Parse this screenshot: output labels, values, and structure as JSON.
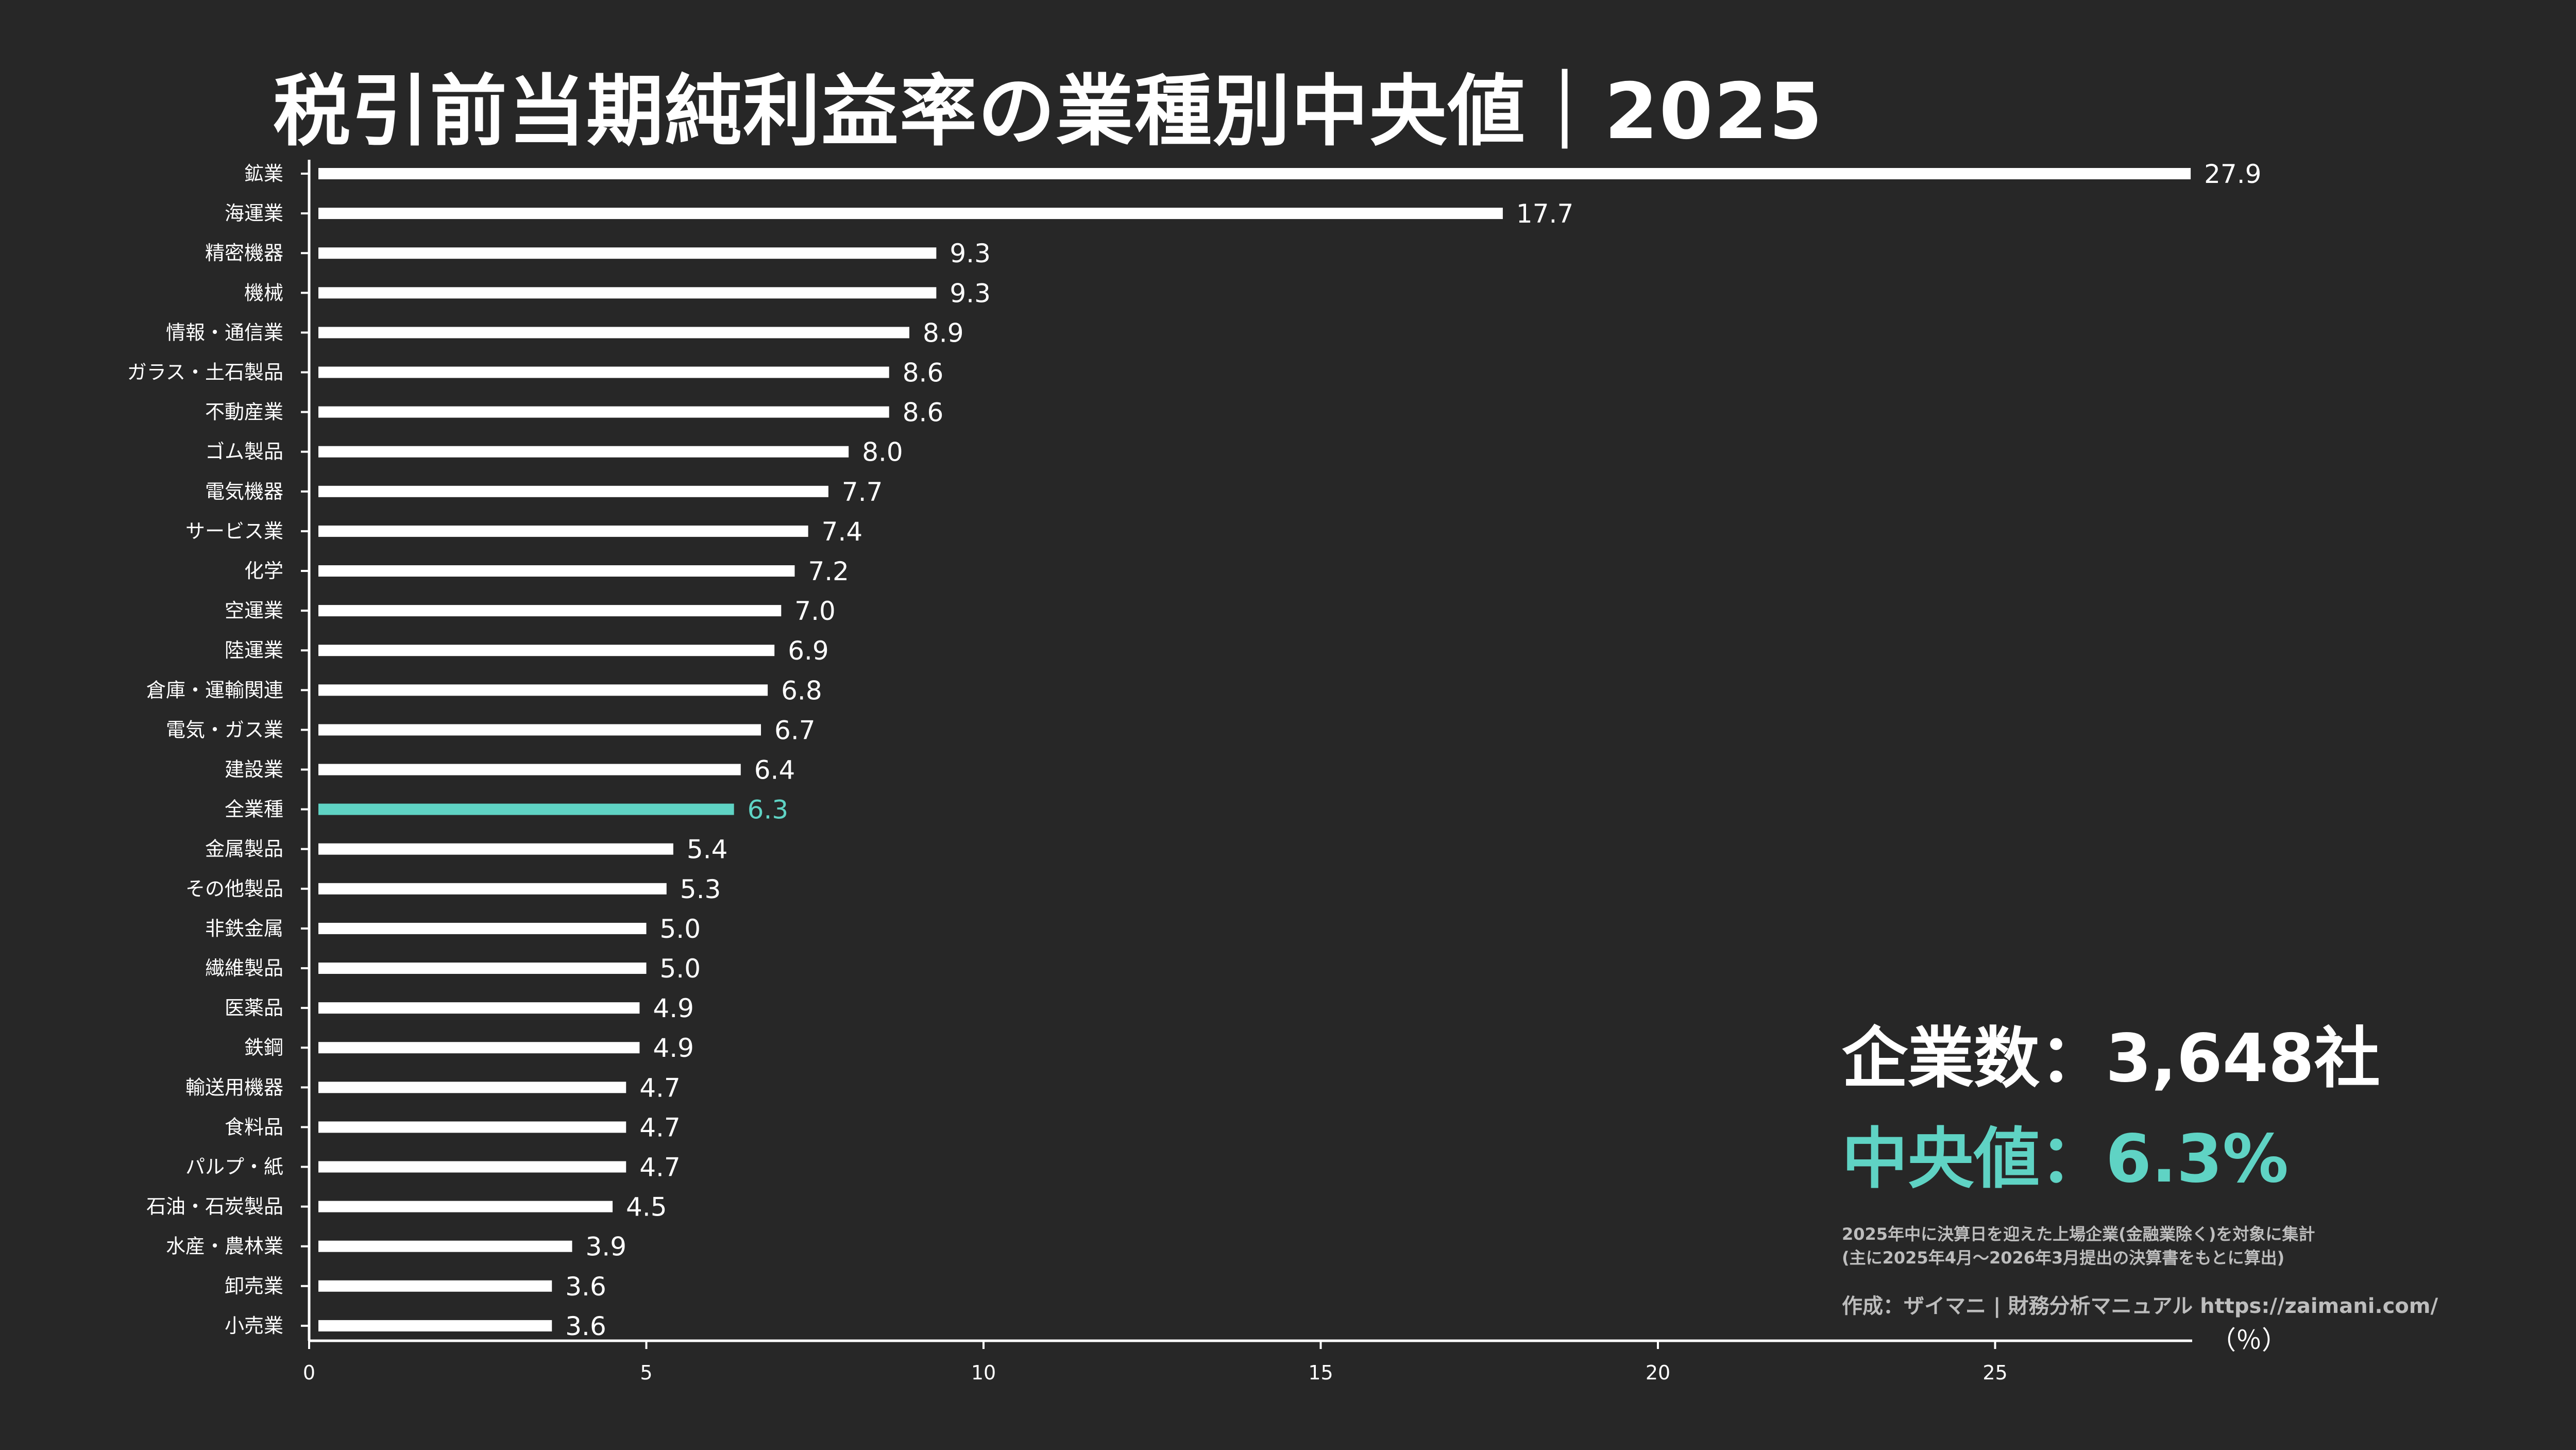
{
  "title": "税引前当期純利益率の業種別中央値｜2025",
  "colors": {
    "background": "#272727",
    "bar": "#ffffff",
    "highlight": "#5fd3c4",
    "note": "#bdbdbd"
  },
  "info": {
    "company_count": "企業数：3,648社",
    "median": "中央値：6.3%",
    "note_line1": "2025年中に決算日を迎えた上場企業(金融業除く)を対象に集計",
    "note_line2": "(主に2025年4月〜2026年3月提出の決算書をもとに算出)",
    "credit": "作成：ザイマニ | 財務分析マニュアル https://zaimani.com/"
  },
  "chart_data": {
    "type": "bar",
    "orientation": "horizontal",
    "unit_label": "（％）",
    "xlim": [
      0,
      28
    ],
    "xticks": [
      0,
      5,
      10,
      15,
      20,
      25
    ],
    "highlight_category": "全業種",
    "categories": [
      "鉱業",
      "海運業",
      "精密機器",
      "機械",
      "情報・通信業",
      "ガラス・土石製品",
      "不動産業",
      "ゴム製品",
      "電気機器",
      "サービス業",
      "化学",
      "空運業",
      "陸運業",
      "倉庫・運輸関連",
      "電気・ガス業",
      "建設業",
      "全業種",
      "金属製品",
      "その他製品",
      "非鉄金属",
      "繊維製品",
      "医薬品",
      "鉄鋼",
      "輸送用機器",
      "食料品",
      "パルプ・紙",
      "石油・石炭製品",
      "水産・農林業",
      "卸売業",
      "小売業"
    ],
    "values": [
      27.9,
      17.7,
      9.3,
      9.3,
      8.9,
      8.6,
      8.6,
      8.0,
      7.7,
      7.4,
      7.2,
      7.0,
      6.9,
      6.8,
      6.7,
      6.4,
      6.3,
      5.4,
      5.3,
      5.0,
      5.0,
      4.9,
      4.9,
      4.7,
      4.7,
      4.7,
      4.5,
      3.9,
      3.6,
      3.6
    ],
    "value_labels": [
      "27.9",
      "17.7",
      "9.3",
      "9.3",
      "8.9",
      "8.6",
      "8.6",
      "8.0",
      "7.7",
      "7.4",
      "7.2",
      "7.0",
      "6.9",
      "6.8",
      "6.7",
      "6.4",
      "6.3",
      "5.4",
      "5.3",
      "5.0",
      "5.0",
      "4.9",
      "4.9",
      "4.7",
      "4.7",
      "4.7",
      "4.5",
      "3.9",
      "3.6",
      "3.6"
    ]
  }
}
